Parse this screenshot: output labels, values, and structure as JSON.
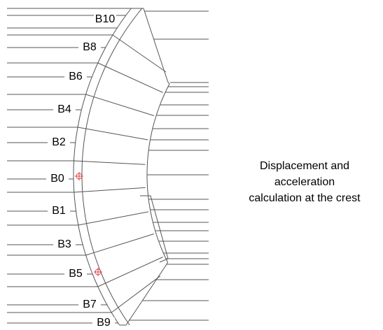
{
  "blocks": [
    {
      "label": "B10"
    },
    {
      "label": "B8"
    },
    {
      "label": "B6"
    },
    {
      "label": "B4"
    },
    {
      "label": "B2"
    },
    {
      "label": "B0"
    },
    {
      "label": "B1"
    },
    {
      "label": "B3"
    },
    {
      "label": "B5"
    },
    {
      "label": "B7"
    },
    {
      "label": "B9"
    }
  ],
  "caption": [
    "Displacement and",
    "acceleration",
    "calculation at the crest"
  ]
}
